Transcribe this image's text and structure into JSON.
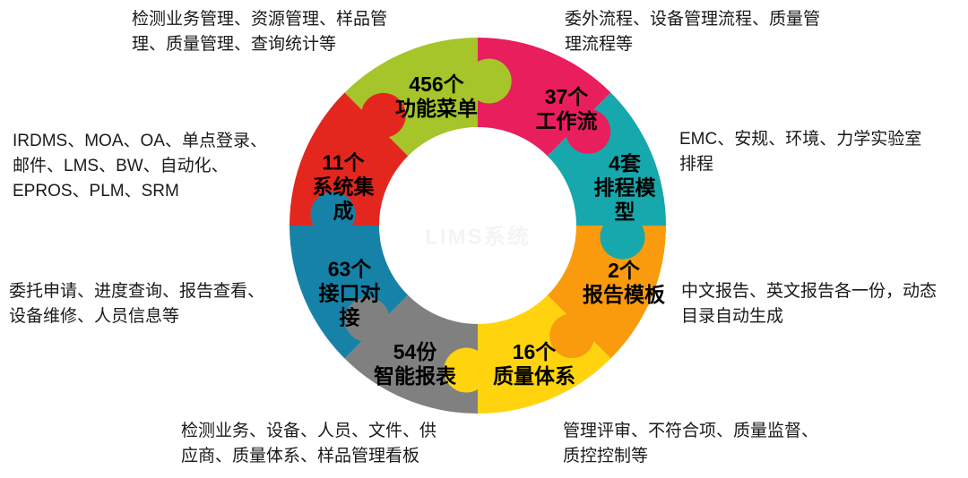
{
  "diagram": {
    "type": "puzzle-donut",
    "watermark": "LIMS系统",
    "segments": [
      {
        "id": "function-menu",
        "value": "456个",
        "name": "功能菜单",
        "label": "456个\n功能菜单",
        "color": "#A5C52A",
        "desc": "检测业务管理、资源管理、样品管\n理、质量管理、查询统计等"
      },
      {
        "id": "workflow",
        "value": "37个",
        "name": "工作流",
        "label": "37个\n工作流",
        "color": "#E81E5D",
        "desc": "委外流程、设备管理流程、质量管\n理流程等"
      },
      {
        "id": "scheduling-model",
        "value": "4套",
        "name": "排程模型",
        "label": "4套\n排程模\n型",
        "color": "#16A8AC",
        "desc": "EMC、安规、环境、力学实验室\n排程"
      },
      {
        "id": "report-template",
        "value": "2个",
        "name": "报告模板",
        "label": "2个\n报告模板",
        "color": "#F99B0D",
        "desc": "中文报告、英文报告各一份，动态\n目录自动生成"
      },
      {
        "id": "quality-system",
        "value": "16个",
        "name": "质量体系",
        "label": "16个\n质量体系",
        "color": "#FFD40E",
        "desc": "管理评审、不符合项、质量监督、\n质控控制等"
      },
      {
        "id": "smart-report",
        "value": "54份",
        "name": "智能报表",
        "label": "54份\n智能报表",
        "color": "#808080",
        "desc": "检测业务、设备、人员、文件、供\n应商、质量体系、样品管理看板"
      },
      {
        "id": "interface-integration",
        "value": "63个",
        "name": "接口对接",
        "label": "63个\n接口对\n接",
        "color": "#1682A8",
        "desc": "委托申请、进度查询、报告查看、\n设备维修、人员信息等"
      },
      {
        "id": "system-integration",
        "value": "11个",
        "name": "系统集成",
        "label": "11个\n系统集\n成",
        "color": "#E3271E",
        "desc": "IRDMS、MOA、OA、单点登录、\n邮件、LMS、BW、自动化、\nEPROS、PLM、SRM"
      }
    ]
  }
}
